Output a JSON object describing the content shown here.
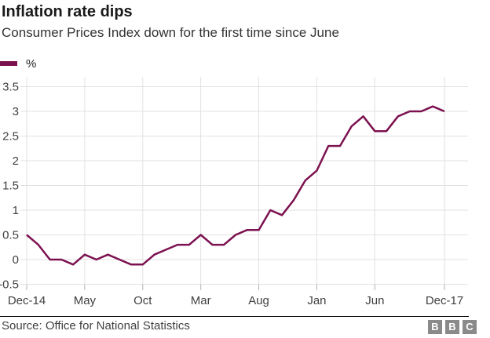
{
  "header": {
    "title": "Inflation rate dips",
    "subtitle": "Consumer Prices Index down for the first time since June"
  },
  "legend": {
    "label": "%"
  },
  "chart_data": {
    "type": "line",
    "title": "Inflation rate dips",
    "subtitle": "Consumer Prices Index down for the first time since June",
    "xlabel": "",
    "ylabel": "%",
    "ylim": [
      -0.5,
      3.5
    ],
    "grid": true,
    "legend_position": "top-left",
    "x": [
      "Dec-14",
      "Jan-15",
      "Feb-15",
      "Mar-15",
      "Apr-15",
      "May-15",
      "Jun-15",
      "Jul-15",
      "Aug-15",
      "Sep-15",
      "Oct-15",
      "Nov-15",
      "Dec-15",
      "Jan-16",
      "Feb-16",
      "Mar-16",
      "Apr-16",
      "May-16",
      "Jun-16",
      "Jul-16",
      "Aug-16",
      "Sep-16",
      "Oct-16",
      "Nov-16",
      "Dec-16",
      "Jan-17",
      "Feb-17",
      "Mar-17",
      "Apr-17",
      "May-17",
      "Jun-17",
      "Jul-17",
      "Aug-17",
      "Sep-17",
      "Oct-17",
      "Nov-17",
      "Dec-17"
    ],
    "series": [
      {
        "name": "%",
        "color": "#7c1150",
        "values": [
          0.5,
          0.3,
          0,
          0,
          -0.1,
          0.1,
          0,
          0.1,
          0,
          -0.1,
          -0.1,
          0.1,
          0.2,
          0.3,
          0.3,
          0.5,
          0.3,
          0.3,
          0.5,
          0.6,
          0.6,
          1,
          0.9,
          1.2,
          1.6,
          1.8,
          2.3,
          2.3,
          2.7,
          2.9,
          2.6,
          2.6,
          2.9,
          3,
          3,
          3.1,
          3
        ]
      }
    ],
    "y_ticks": [
      -0.5,
      0,
      0.5,
      1,
      1.5,
      2,
      2.5,
      3,
      3.5
    ],
    "y_tick_labels": [
      "-0.5",
      "0",
      "0.5",
      "1",
      "1.5",
      "2",
      "2.5",
      "3",
      "3.5"
    ],
    "x_tick_indices": [
      0,
      5,
      10,
      15,
      20,
      25,
      30,
      36
    ],
    "x_tick_labels": [
      "Dec-14",
      "May",
      "Oct",
      "Mar",
      "Aug",
      "Jan",
      "Jun",
      "Dec-17"
    ]
  },
  "colors": {
    "line": "#7c1150",
    "grid": "#e2e2e2",
    "tick": "#b3b3b3",
    "axis_text": "#404040",
    "divider": "#000000",
    "logo_box": "#8a8a8a",
    "logo_letter": "#ffffff"
  },
  "footer": {
    "source": "Source: Office for National Statistics",
    "logo": [
      "B",
      "B",
      "C"
    ]
  }
}
